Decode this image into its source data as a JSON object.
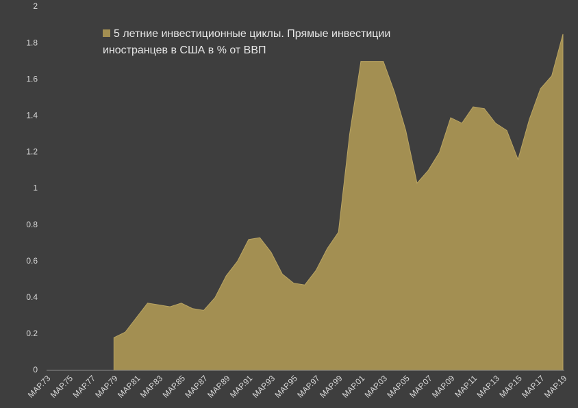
{
  "chart_data": {
    "type": "area",
    "categories": [
      "МАР.73",
      null,
      "МАР.75",
      null,
      "МАР.77",
      null,
      "МАР.79",
      null,
      "МАР.81",
      null,
      "МАР.83",
      null,
      "МАР.85",
      null,
      "МАР.87",
      null,
      "МАР.89",
      null,
      "МАР.91",
      null,
      "МАР.93",
      null,
      "МАР.95",
      null,
      "МАР.97",
      null,
      "МАР.99",
      null,
      "МАР.01",
      null,
      "МАР.03",
      null,
      "МАР.05",
      null,
      "МАР.07",
      null,
      "МАР.09",
      null,
      "МАР.11",
      null,
      "МАР.13",
      null,
      "МАР.15",
      null,
      "МАР.17",
      null,
      "МАР.19"
    ],
    "series": [
      {
        "name": "5 летние инвестиционные циклы. Прямые инвестиции иностранцев в США в %  от ВВП",
        "color": "#a38f52",
        "values": [
          null,
          null,
          null,
          null,
          null,
          null,
          0.18,
          0.21,
          0.29,
          0.37,
          0.36,
          0.35,
          0.37,
          0.34,
          0.33,
          0.4,
          0.52,
          0.6,
          0.72,
          0.73,
          0.65,
          0.53,
          0.48,
          0.47,
          0.55,
          0.67,
          0.76,
          1.3,
          1.7,
          1.7,
          1.7,
          1.53,
          1.32,
          1.03,
          1.1,
          1.2,
          1.39,
          1.36,
          1.45,
          1.44,
          1.36,
          1.32,
          1.16,
          1.38,
          1.55,
          1.62,
          1.85
        ]
      }
    ],
    "ylim": [
      0,
      2
    ],
    "yticks": [
      0,
      0.2,
      0.4,
      0.6,
      0.8,
      1,
      1.2,
      1.4,
      1.6,
      1.8,
      2
    ],
    "grid": false
  }
}
